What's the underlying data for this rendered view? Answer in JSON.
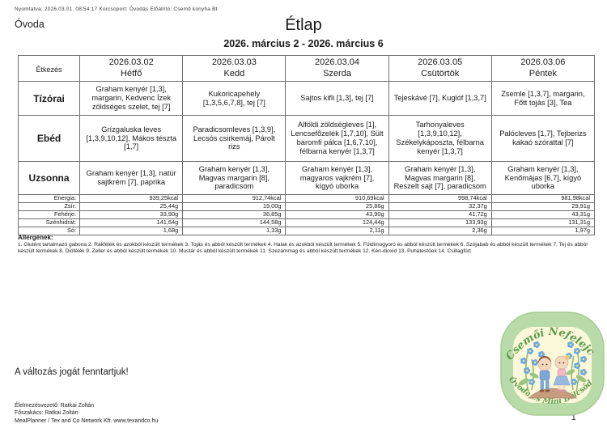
{
  "print_info": "Nyomtatva: 2026.03.01. 08:54:17 Korcsoport: Óvodás Előállító: Csemő konyha Bt",
  "group_label": "Óvoda",
  "title": "Étlap",
  "date_range": "2026. március 2 - 2026. március 6",
  "table": {
    "meal_header": "Étkezés",
    "days": [
      {
        "date": "2026.03.02",
        "name": "Hétfő"
      },
      {
        "date": "2026.03.03",
        "name": "Kedd"
      },
      {
        "date": "2026.03.04",
        "name": "Szerda"
      },
      {
        "date": "2026.03.05",
        "name": "Csütörtök"
      },
      {
        "date": "2026.03.06",
        "name": "Péntek"
      }
    ],
    "meals": [
      {
        "label": "Tízórai",
        "row_class": "r-tizorai",
        "items": [
          "Graham kenyér [1,3], margarin, Kedvenc Ízek zöldséges szelet, tej [7]",
          "Kukoricapehely [1,3,5,6,7,8], tej [7]",
          "Sajtos kifli [1,3], tej [7]",
          "Tejeskávé [7], Kuglóf [1,3,7]",
          "Zsemle [1,3,7], margarin, Főtt tojás [3], Tea"
        ]
      },
      {
        "label": "Ebéd",
        "row_class": "r-ebed",
        "items": [
          "Grízgaluska leves [1,3,9,10,12], Mákos tészta [1,7]",
          "Paradicsomleves [1,3,9], Lecsós csirkemáj, Párolt rizs",
          "Alföldi zöldségleves [1], Lencsefőzelék [1,7,10], Sült baromfi pálca [1,6,7,10], félbarna kenyér [1,3,7]",
          "Tarhonyaleves [1,3,9,10,12], Székelykáposzta, félbarna kenyér [1,3,7]",
          "Palócleves [1,7], Tejberizs kakaó szórattal [7]"
        ]
      },
      {
        "label": "Uzsonna",
        "row_class": "r-uzsonna",
        "items": [
          "Graham kenyér [1,3], natúr sajtkrém [7], paprika",
          "Graham kenyér [1,3], Magvas margarin [8], paradicsom",
          "Graham kenyér [1,3], magyaros vajkrém [7], kígyó uborka",
          "Graham kenyér [1,3], Magvas margarin [8], Reszelt sajt [7], paradicsom",
          "Graham kenyér [1,3], Kenőmájas [6,7], kígyó uborka"
        ]
      }
    ],
    "nutrition": [
      {
        "label": "Energia:",
        "values": [
          "939,25kcal",
          "912,74kcal",
          "910,69kcal",
          "998,74kcal",
          "981,98kcal"
        ]
      },
      {
        "label": "Zsír:",
        "values": [
          "25,44g",
          "19,00g",
          "25,86g",
          "32,37g",
          "29,91g"
        ]
      },
      {
        "label": "Fehérje:",
        "values": [
          "33,90g",
          "36,85g",
          "43,90g",
          "41,72g",
          "43,31g"
        ]
      },
      {
        "label": "Szénhidrát:",
        "values": [
          "141,64g",
          "144,58g",
          "124,44g",
          "133,93g",
          "131,31g"
        ]
      },
      {
        "label": "Só:",
        "values": [
          "1,68g",
          "1,33g",
          "2,11g",
          "2,36g",
          "1,97g"
        ]
      }
    ]
  },
  "allergens": {
    "heading": "Allergének:",
    "text": "1. Glutént tartalmazó gabona 2. Rákfélék és azokból készült termékek 3. Tojás és abból készült termékek 4. Halak és azokból készült termékek 5. Földimogyoró és abból készült termékek 6. Szójabab és abból készült termékek 7. Tej és abból készült termékek 8. Diófélék 9. Zeller és abból készült termékek 10. Mustár és abból készült termékek 11. Szezámmag és abból készült termékek 12. Kén-dioxid 13. Puhatestűek 14. Csillagfürt"
  },
  "notice": "A változás jogát fenntartjuk!",
  "footer": {
    "line1": "Élelmezésvezető: Ratkai Zoltán",
    "line2": "Főszakács: Ratkai Zoltán",
    "line3": "MealPlanner / Tex and Co Network Kft. www.texandco.hu"
  },
  "page_number": "1",
  "logo": {
    "top_text": "Csemői Nefelejcs",
    "bottom_text": "Óvoda és Mini Bölcsőde",
    "ring_color": "#b9dba9",
    "inner_color": "#fbf8da",
    "text_color": "#5d9c4c",
    "flower_color": "#6fa8dc"
  }
}
